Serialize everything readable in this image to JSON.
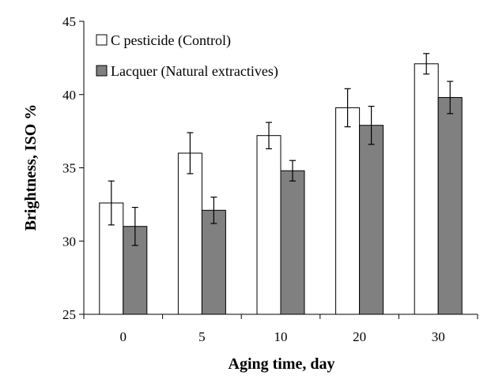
{
  "chart_data": {
    "type": "bar",
    "title": "",
    "xlabel": "Aging time, day",
    "ylabel": "Brightness, ISO %",
    "categories": [
      "0",
      "5",
      "10",
      "20",
      "30"
    ],
    "ylim": [
      25,
      45
    ],
    "yticks": [
      "25",
      "30",
      "35",
      "40",
      "45"
    ],
    "grid": false,
    "legend_position": "top-left",
    "series": [
      {
        "name": "C pesticide (Control)",
        "color": "#ffffff",
        "values": [
          32.6,
          36.0,
          37.2,
          39.1,
          42.1
        ],
        "errors": [
          1.5,
          1.4,
          0.9,
          1.3,
          0.7
        ]
      },
      {
        "name": "Lacquer (Natural extractives)",
        "color": "#808080",
        "values": [
          31.0,
          32.1,
          34.8,
          37.9,
          39.8
        ],
        "errors": [
          1.3,
          0.9,
          0.7,
          1.3,
          1.1
        ]
      }
    ]
  }
}
